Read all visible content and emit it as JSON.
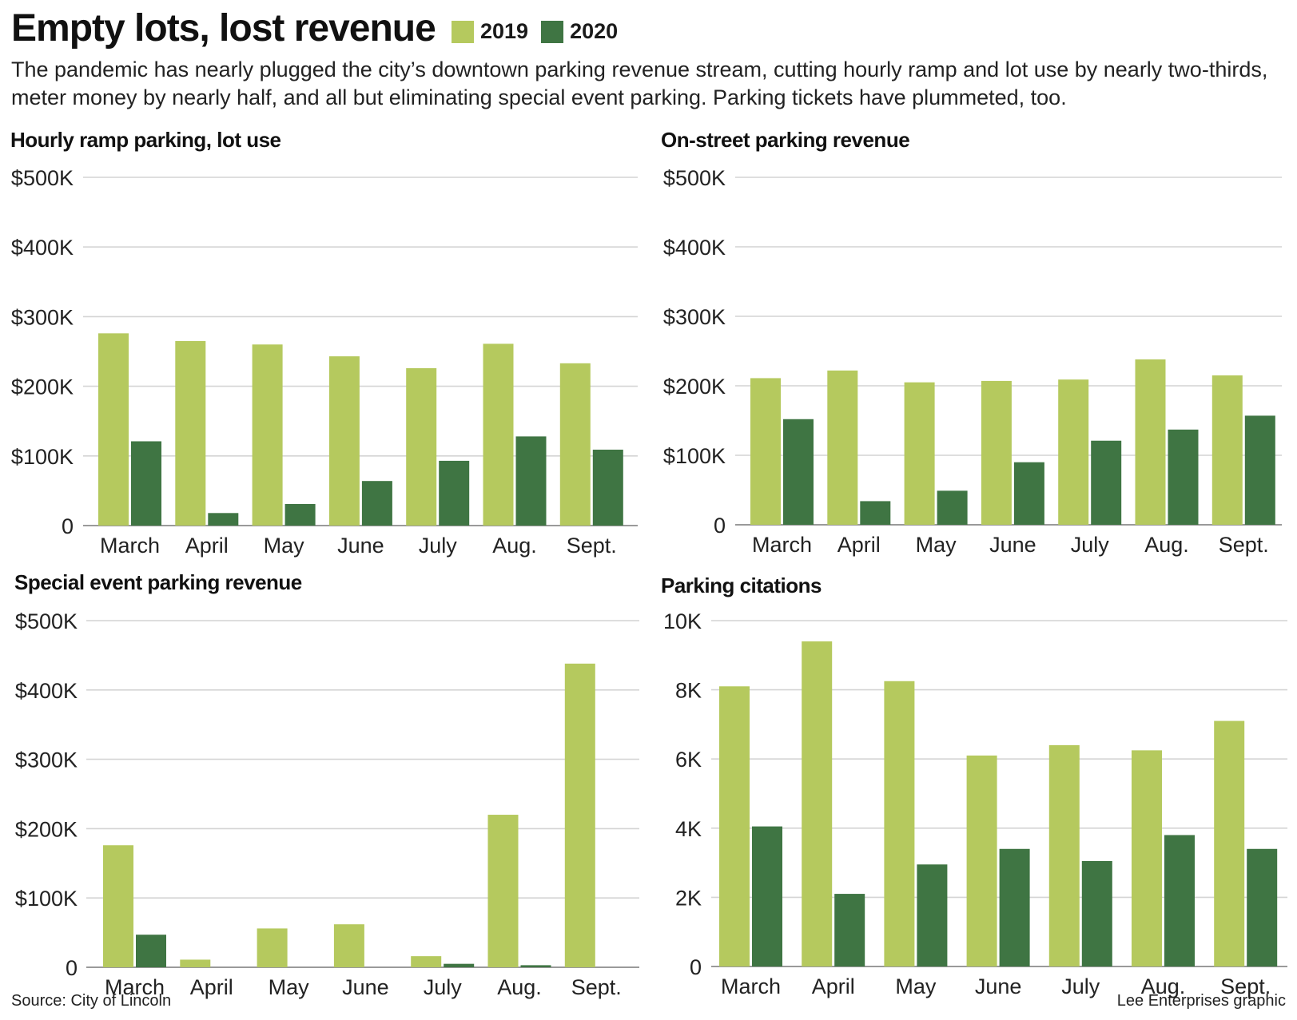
{
  "header": {
    "title": "Empty lots, lost revenue",
    "subtitle": "The pandemic has nearly plugged the city’s downtown parking revenue stream, cutting hourly ramp and lot use by nearly two-thirds, meter money by nearly half, and all but eliminating special event parking. Parking tickets have plummeted, too."
  },
  "legend": [
    {
      "label": "2019",
      "color": "#b5c95e"
    },
    {
      "label": "2020",
      "color": "#3f7543"
    }
  ],
  "footer": {
    "source": "Source: City of Lincoln",
    "credit": "Lee Enterprises graphic"
  },
  "chart_data": [
    {
      "type": "bar",
      "title": "Hourly ramp parking, lot use",
      "categories": [
        "March",
        "April",
        "May",
        "June",
        "July",
        "Aug.",
        "Sept."
      ],
      "series": [
        {
          "name": "2019",
          "values": [
            276000,
            265000,
            260000,
            243000,
            226000,
            261000,
            233000
          ]
        },
        {
          "name": "2020",
          "values": [
            121000,
            18000,
            31000,
            64000,
            93000,
            128000,
            109000
          ]
        }
      ],
      "ylim": [
        0,
        500000
      ],
      "yticks": [
        0,
        100000,
        200000,
        300000,
        400000,
        500000
      ],
      "ytick_labels": [
        "0",
        "$100K",
        "$200K",
        "$300K",
        "$400K",
        "$500K"
      ],
      "xlabel": "",
      "ylabel": ""
    },
    {
      "type": "bar",
      "title": "On-street parking revenue",
      "categories": [
        "March",
        "April",
        "May",
        "June",
        "July",
        "Aug.",
        "Sept."
      ],
      "series": [
        {
          "name": "2019",
          "values": [
            211000,
            222000,
            205000,
            207000,
            209000,
            238000,
            215000
          ]
        },
        {
          "name": "2020",
          "values": [
            152000,
            34000,
            49000,
            90000,
            121000,
            137000,
            157000
          ]
        }
      ],
      "ylim": [
        0,
        500000
      ],
      "yticks": [
        0,
        100000,
        200000,
        300000,
        400000,
        500000
      ],
      "ytick_labels": [
        "0",
        "$100K",
        "$200K",
        "$300K",
        "$400K",
        "$500K"
      ],
      "xlabel": "",
      "ylabel": ""
    },
    {
      "type": "bar",
      "title": "Special event parking revenue",
      "categories": [
        "March",
        "April",
        "May",
        "June",
        "July",
        "Aug.",
        "Sept."
      ],
      "series": [
        {
          "name": "2019",
          "values": [
            176000,
            11000,
            56000,
            62000,
            16000,
            220000,
            438000
          ]
        },
        {
          "name": "2020",
          "values": [
            47000,
            0,
            0,
            0,
            5000,
            3000,
            0
          ]
        }
      ],
      "ylim": [
        0,
        500000
      ],
      "yticks": [
        0,
        100000,
        200000,
        300000,
        400000,
        500000
      ],
      "ytick_labels": [
        "0",
        "$100K",
        "$200K",
        "$300K",
        "$400K",
        "$500K"
      ],
      "xlabel": "",
      "ylabel": ""
    },
    {
      "type": "bar",
      "title": "Parking citations",
      "categories": [
        "March",
        "April",
        "May",
        "June",
        "July",
        "Aug.",
        "Sept."
      ],
      "series": [
        {
          "name": "2019",
          "values": [
            8100,
            9400,
            8250,
            6100,
            6400,
            6250,
            7100
          ]
        },
        {
          "name": "2020",
          "values": [
            4050,
            2100,
            2950,
            3400,
            3050,
            3800,
            3400
          ]
        }
      ],
      "ylim": [
        0,
        10000
      ],
      "yticks": [
        0,
        2000,
        4000,
        6000,
        8000,
        10000
      ],
      "ytick_labels": [
        "0",
        "2K",
        "4K",
        "6K",
        "8K",
        "10K"
      ],
      "xlabel": "",
      "ylabel": ""
    }
  ]
}
